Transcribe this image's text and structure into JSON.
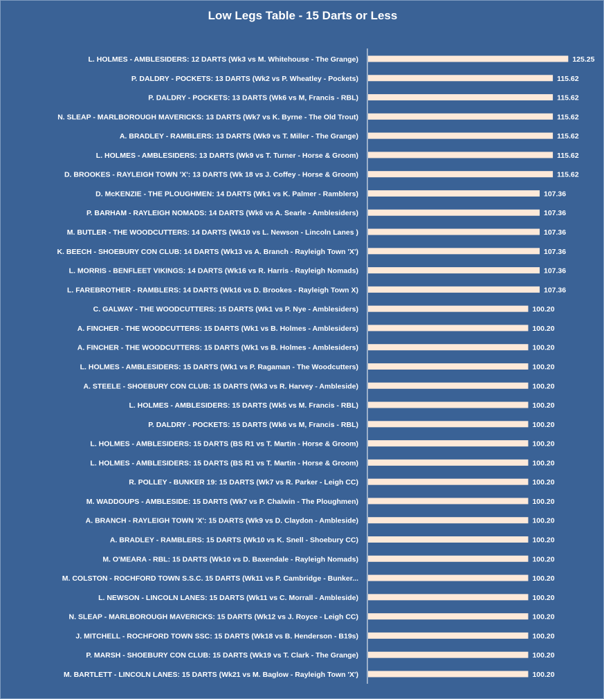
{
  "chart_data": {
    "type": "bar",
    "orientation": "horizontal",
    "title": "Low Legs Table - 15 Darts or Less",
    "categories": [
      "L. HOLMES - AMBLESIDERS: 12 DARTS (Wk3 vs M. Whitehouse - The Grange)",
      "P. DALDRY - POCKETS: 13 DARTS (Wk2 vs P. Wheatley - Pockets)",
      "P. DALDRY - POCKETS: 13 DARTS (Wk6 vs M, Francis - RBL)",
      "N. SLEAP - MARLBOROUGH MAVERICKS: 13 DARTS (Wk7 vs K. Byrne - The Old Trout)",
      "A. BRADLEY - RAMBLERS: 13 DARTS (Wk9 vs T. Miller - The Grange)",
      "L. HOLMES - AMBLESIDERS: 13 DARTS (Wk9 vs T. Turner - Horse & Groom)",
      "D. BROOKES - RAYLEIGH TOWN 'X': 13 DARTS (Wk 18 vs J. Coffey - Horse & Groom)",
      "D. McKENZIE - THE PLOUGHMEN: 14 DARTS (Wk1 vs K. Palmer - Ramblers)",
      "P. BARHAM - RAYLEIGH NOMADS: 14 DARTS (Wk6 vs A. Searle - Amblesiders)",
      "M. BUTLER - THE WOODCUTTERS: 14 DARTS (Wk10 vs L. Newson - Lincoln Lanes )",
      "K. BEECH - SHOEBURY CON CLUB: 14 DARTS (Wk13 vs A. Branch - Rayleigh Town 'X')",
      "L. MORRIS - BENFLEET VIKINGS: 14 DARTS (Wk16 vs R. Harris - Rayleigh Nomads)",
      "L. FAREBROTHER - RAMBLERS: 14 DARTS (Wk16 vs D. Brookes - Rayleigh Town X)",
      "C. GALWAY - THE WOODCUTTERS: 15 DARTS (Wk1 vs P. Nye - Amblesiders)",
      "A. FINCHER - THE WOODCUTTERS: 15 DARTS (Wk1 vs B. Holmes - Amblesiders)",
      "A. FINCHER - THE WOODCUTTERS: 15 DARTS (Wk1 vs B. Holmes - Amblesiders)",
      "L. HOLMES - AMBLESIDERS: 15 DARTS (Wk1 vs P. Ragaman - The Woodcutters)",
      "A. STEELE - SHOEBURY CON CLUB: 15 DARTS (Wk3 vs R. Harvey - Ambleside)",
      "L. HOLMES - AMBLESIDERS: 15 DARTS (Wk5 vs M. Francis - RBL)",
      "P. DALDRY - POCKETS: 15 DARTS (Wk6 vs M, Francis - RBL)",
      "L. HOLMES - AMBLESIDERS: 15 DARTS (BS R1 vs T. Martin - Horse & Groom)",
      "L. HOLMES - AMBLESIDERS: 15 DARTS (BS R1 vs T. Martin - Horse & Groom)",
      "R. POLLEY - BUNKER 19: 15 DARTS (Wk7 vs R. Parker - Leigh CC)",
      "M. WADDOUPS - AMBLESIDE: 15 DARTS (Wk7 vs P. Chalwin - The Ploughmen)",
      "A. BRANCH - RAYLEIGH TOWN 'X': 15 DARTS (Wk9 vs D. Claydon - Ambleside)",
      "A. BRADLEY - RAMBLERS: 15 DARTS (Wk10 vs K. Snell - Shoebury CC)",
      "M. O'MEARA - RBL: 15 DARTS (Wk10 vs D. Baxendale - Rayleigh Nomads)",
      "M. COLSTON - ROCHFORD TOWN S.S.C. 15 DARTS (Wk11 vs P. Cambridge - Bunker...",
      "L. NEWSON - LINCOLN LANES: 15 DARTS (Wk11 vs C. Morrall - Ambleside)",
      "N. SLEAP - MARLBOROUGH MAVERICKS: 15 DARTS (Wk12 vs J. Royce - Leigh CC)",
      "J. MITCHELL - ROCHFORD TOWN SSC: 15 DARTS (Wk18 vs B. Henderson - B19s)",
      "P. MARSH - SHOEBURY CON CLUB: 15 DARTS (Wk19 vs T. Clark - The Grange)",
      "M. BARTLETT - LINCOLN LANES: 15 DARTS (Wk21 vs M. Baglow - Rayleigh Town 'X')"
    ],
    "values": [
      125.25,
      115.62,
      115.62,
      115.62,
      115.62,
      115.62,
      115.62,
      107.36,
      107.36,
      107.36,
      107.36,
      107.36,
      107.36,
      100.2,
      100.2,
      100.2,
      100.2,
      100.2,
      100.2,
      100.2,
      100.2,
      100.2,
      100.2,
      100.2,
      100.2,
      100.2,
      100.2,
      100.2,
      100.2,
      100.2,
      100.2,
      100.2,
      100.2
    ],
    "value_labels": [
      "125.25",
      "115.62",
      "115.62",
      "115.62",
      "115.62",
      "115.62",
      "115.62",
      "107.36",
      "107.36",
      "107.36",
      "107.36",
      "107.36",
      "107.36",
      "100.20",
      "100.20",
      "100.20",
      "100.20",
      "100.20",
      "100.20",
      "100.20",
      "100.20",
      "100.20",
      "100.20",
      "100.20",
      "100.20",
      "100.20",
      "100.20",
      "100.20",
      "100.20",
      "100.20",
      "100.20",
      "100.20",
      "100.20"
    ],
    "xlim": [
      0,
      140
    ],
    "grid": false,
    "legend": "none",
    "colors": {
      "background": "#3a6296",
      "bar": "#fde9d9",
      "axis": "#ffffff",
      "text": "#ffffff"
    }
  }
}
